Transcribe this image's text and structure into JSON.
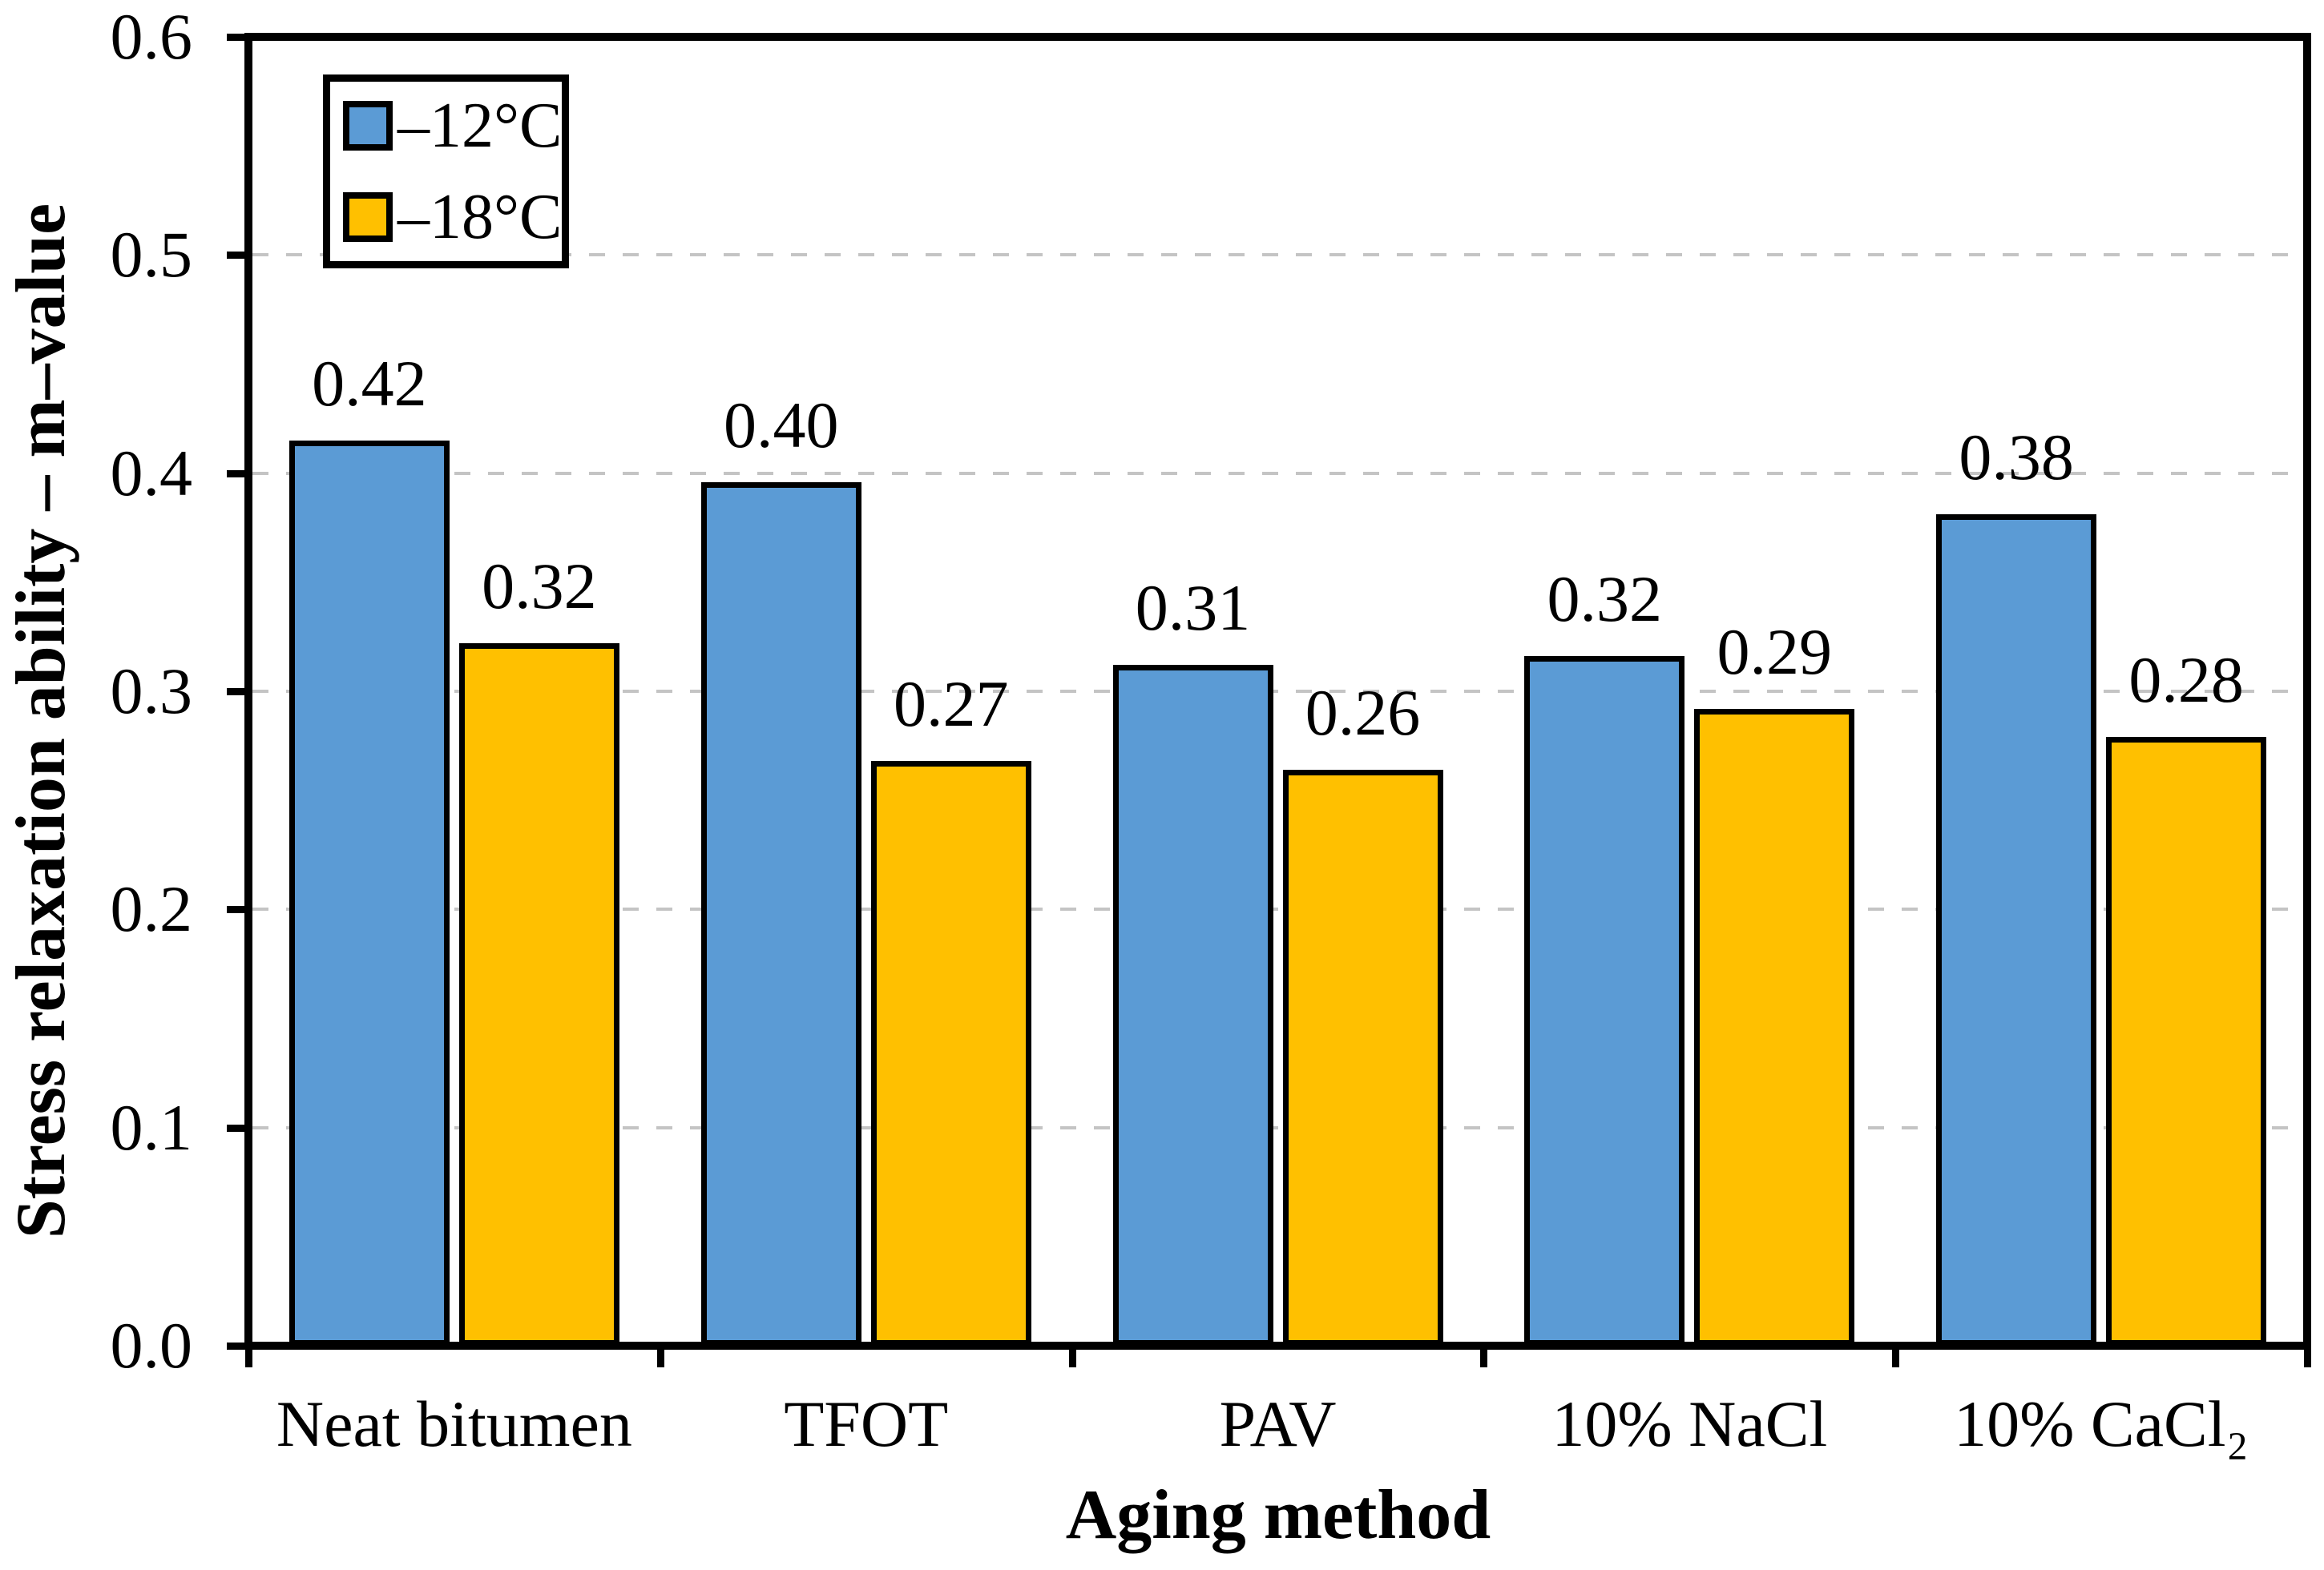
{
  "chart_data": {
    "type": "bar",
    "title": "",
    "xlabel": "Aging method",
    "ylabel": "Stress relaxation ability – m–value",
    "categories": [
      "Neat bitumen",
      "TFOT",
      "PAV",
      "10% NaCl",
      "10% CaCl₂"
    ],
    "series": [
      {
        "name": "–12°C",
        "color": "#5B9BD5",
        "values": [
          0.415,
          0.396,
          0.312,
          0.316,
          0.381
        ],
        "labels": [
          "0.42",
          "0.40",
          "0.31",
          "0.32",
          "0.38"
        ]
      },
      {
        "name": "–18°C",
        "color": "#FFC000",
        "values": [
          0.322,
          0.268,
          0.264,
          0.292,
          0.279
        ],
        "labels": [
          "0.32",
          "0.27",
          "0.26",
          "0.29",
          "0.28"
        ]
      }
    ],
    "ylim": [
      0,
      0.6
    ],
    "ytick_step": 0.1,
    "ytick_labels": [
      "0.0",
      "0.1",
      "0.2",
      "0.3",
      "0.4",
      "0.5",
      "0.6"
    ],
    "grid": "horizontal dashed at 0.1 steps",
    "legend_position": "top-left inside plot",
    "colors": {
      "axis": "#000000",
      "bar_border": "#000000",
      "gridline": "#C4C4C4",
      "label_text": "#000000",
      "background": "#FFFFFF"
    }
  }
}
